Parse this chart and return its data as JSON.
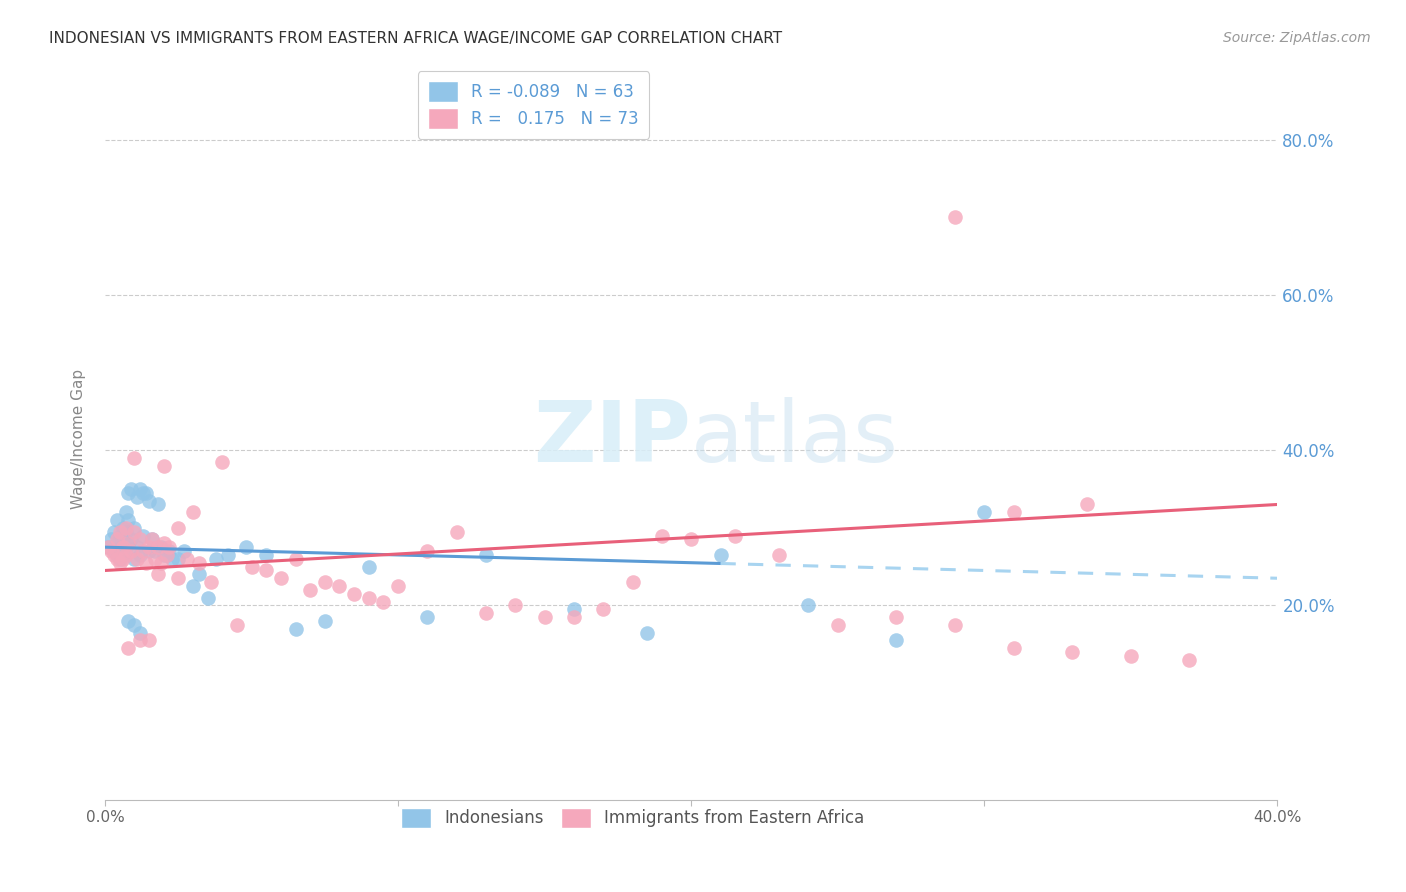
{
  "title": "INDONESIAN VS IMMIGRANTS FROM EASTERN AFRICA WAGE/INCOME GAP CORRELATION CHART",
  "source": "Source: ZipAtlas.com",
  "ylabel": "Wage/Income Gap",
  "xlim": [
    0.0,
    0.4
  ],
  "ylim": [
    -0.05,
    0.88
  ],
  "yticks": [
    0.2,
    0.4,
    0.6,
    0.8
  ],
  "right_ytick_labels": [
    "20.0%",
    "40.0%",
    "60.0%",
    "80.0%"
  ],
  "legend_r_blue": "-0.089",
  "legend_n_blue": "63",
  "legend_r_pink": "0.175",
  "legend_n_pink": "73",
  "legend_label_blue": "Indonesians",
  "legend_label_pink": "Immigrants from Eastern Africa",
  "blue_color": "#92C5E8",
  "pink_color": "#F5A8BC",
  "trend_blue_color": "#5B9BD5",
  "trend_blue_dash_color": "#A8D4F0",
  "trend_pink_color": "#E8607A",
  "background_color": "#FFFFFF",
  "grid_color": "#CCCCCC",
  "title_color": "#333333",
  "source_color": "#999999",
  "right_axis_color": "#5B9BD5",
  "ylabel_color": "#888888",
  "watermark_color": "#D8EEF8",
  "blue_x": [
    0.001,
    0.002,
    0.003,
    0.003,
    0.004,
    0.004,
    0.004,
    0.005,
    0.005,
    0.005,
    0.006,
    0.006,
    0.006,
    0.007,
    0.007,
    0.007,
    0.008,
    0.008,
    0.008,
    0.009,
    0.009,
    0.01,
    0.01,
    0.011,
    0.011,
    0.012,
    0.012,
    0.013,
    0.013,
    0.014,
    0.015,
    0.015,
    0.016,
    0.017,
    0.018,
    0.019,
    0.02,
    0.021,
    0.022,
    0.023,
    0.025,
    0.027,
    0.03,
    0.032,
    0.035,
    0.038,
    0.042,
    0.048,
    0.055,
    0.065,
    0.075,
    0.09,
    0.11,
    0.13,
    0.16,
    0.185,
    0.21,
    0.24,
    0.27,
    0.3,
    0.008,
    0.01,
    0.012
  ],
  "blue_y": [
    0.275,
    0.285,
    0.27,
    0.295,
    0.28,
    0.265,
    0.31,
    0.26,
    0.29,
    0.275,
    0.285,
    0.3,
    0.265,
    0.275,
    0.295,
    0.32,
    0.28,
    0.31,
    0.345,
    0.285,
    0.35,
    0.26,
    0.3,
    0.275,
    0.34,
    0.35,
    0.265,
    0.345,
    0.29,
    0.345,
    0.27,
    0.335,
    0.285,
    0.27,
    0.33,
    0.275,
    0.265,
    0.265,
    0.27,
    0.26,
    0.26,
    0.27,
    0.225,
    0.24,
    0.21,
    0.26,
    0.265,
    0.275,
    0.265,
    0.17,
    0.18,
    0.25,
    0.185,
    0.265,
    0.195,
    0.165,
    0.265,
    0.2,
    0.155,
    0.32,
    0.18,
    0.175,
    0.165
  ],
  "pink_x": [
    0.001,
    0.002,
    0.003,
    0.004,
    0.004,
    0.005,
    0.005,
    0.006,
    0.006,
    0.007,
    0.007,
    0.008,
    0.009,
    0.01,
    0.011,
    0.012,
    0.013,
    0.014,
    0.015,
    0.016,
    0.017,
    0.018,
    0.019,
    0.02,
    0.021,
    0.022,
    0.025,
    0.028,
    0.032,
    0.036,
    0.04,
    0.045,
    0.05,
    0.055,
    0.06,
    0.065,
    0.07,
    0.075,
    0.08,
    0.085,
    0.09,
    0.095,
    0.1,
    0.11,
    0.12,
    0.13,
    0.14,
    0.15,
    0.16,
    0.17,
    0.18,
    0.19,
    0.2,
    0.215,
    0.23,
    0.25,
    0.27,
    0.29,
    0.31,
    0.33,
    0.35,
    0.37,
    0.03,
    0.025,
    0.02,
    0.018,
    0.015,
    0.012,
    0.01,
    0.008,
    0.29,
    0.31,
    0.335
  ],
  "pink_y": [
    0.275,
    0.27,
    0.265,
    0.285,
    0.26,
    0.295,
    0.255,
    0.26,
    0.275,
    0.3,
    0.265,
    0.28,
    0.27,
    0.295,
    0.26,
    0.285,
    0.27,
    0.255,
    0.275,
    0.285,
    0.26,
    0.275,
    0.255,
    0.28,
    0.265,
    0.275,
    0.235,
    0.26,
    0.255,
    0.23,
    0.385,
    0.175,
    0.25,
    0.245,
    0.235,
    0.26,
    0.22,
    0.23,
    0.225,
    0.215,
    0.21,
    0.205,
    0.225,
    0.27,
    0.295,
    0.19,
    0.2,
    0.185,
    0.185,
    0.195,
    0.23,
    0.29,
    0.285,
    0.29,
    0.265,
    0.175,
    0.185,
    0.175,
    0.145,
    0.14,
    0.135,
    0.13,
    0.32,
    0.3,
    0.38,
    0.24,
    0.155,
    0.155,
    0.39,
    0.145,
    0.7,
    0.32,
    0.33
  ]
}
